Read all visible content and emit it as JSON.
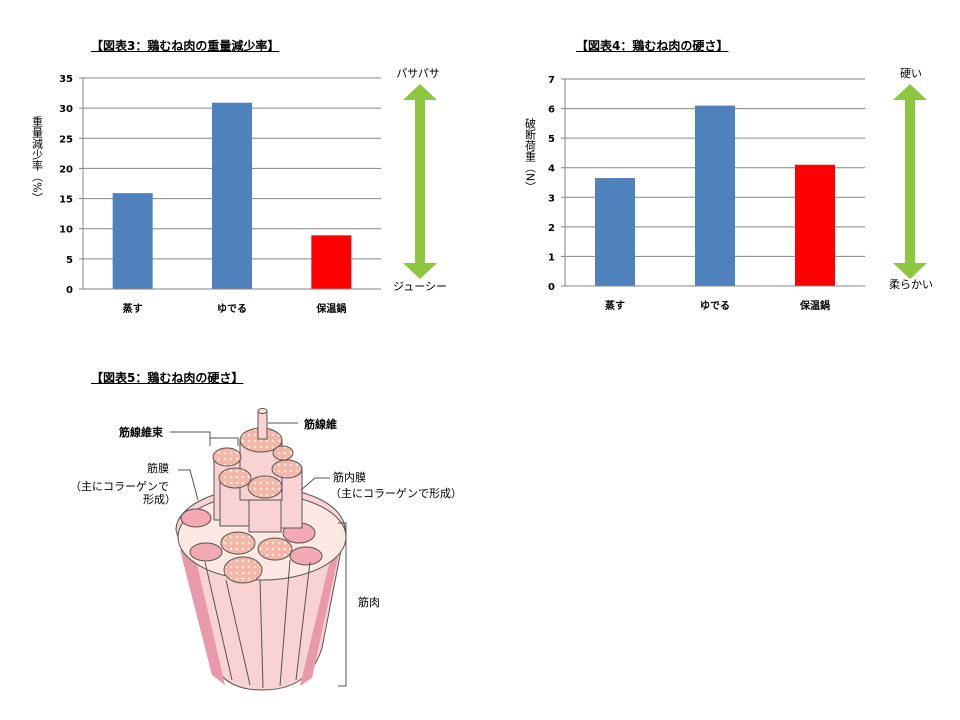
{
  "figures": {
    "fig3_title": "【図表3：鶏むね肉の重量減少率】",
    "fig4_title": "【図表4：鶏むね肉の硬さ】",
    "fig5_title": "【図表5：鶏むね肉の硬さ】"
  },
  "colors": {
    "blue": "#4f81bd",
    "red": "#ff0000",
    "green": "#8dc63f",
    "grid": "#868686"
  },
  "chart_data": [
    {
      "type": "bar",
      "title": "【図表3：鶏むね肉の重量減少率】",
      "categories": [
        "蒸す",
        "ゆでる",
        "保温鍋"
      ],
      "values": [
        15.9,
        30.9,
        8.9
      ],
      "bar_colors": [
        "#4f81bd",
        "#4f81bd",
        "#ff0000"
      ],
      "ylabel": "重量減少率（%）",
      "ylim": [
        0,
        35
      ],
      "yticks": [
        0,
        5,
        10,
        15,
        20,
        25,
        30,
        35
      ],
      "grid": true,
      "scale_arrow": {
        "top": "パサパサ",
        "bottom": "ジューシー"
      }
    },
    {
      "type": "bar",
      "title": "【図表4：鶏むね肉の硬さ】",
      "categories": [
        "蒸す",
        "ゆでる",
        "保温鍋"
      ],
      "values": [
        3.65,
        6.1,
        4.1
      ],
      "bar_colors": [
        "#4f81bd",
        "#4f81bd",
        "#ff0000"
      ],
      "ylabel": "破断荷重（N）",
      "ylim": [
        0,
        7
      ],
      "yticks": [
        0,
        1,
        2,
        3,
        4,
        5,
        6,
        7
      ],
      "grid": true,
      "scale_arrow": {
        "top": "硬い",
        "bottom": "柔らかい"
      }
    }
  ],
  "diagram": {
    "label_fiber": "筋線維",
    "label_bundle": "筋線維束",
    "label_perimysium": "筋膜",
    "label_perimysium_note": "（主にコラーゲンで",
    "label_perimysium_note2": "形成）",
    "label_endomysium": "筋内膜",
    "label_endomysium_note": "（主にコラーゲンで形成）",
    "label_muscle": "筋肉"
  }
}
